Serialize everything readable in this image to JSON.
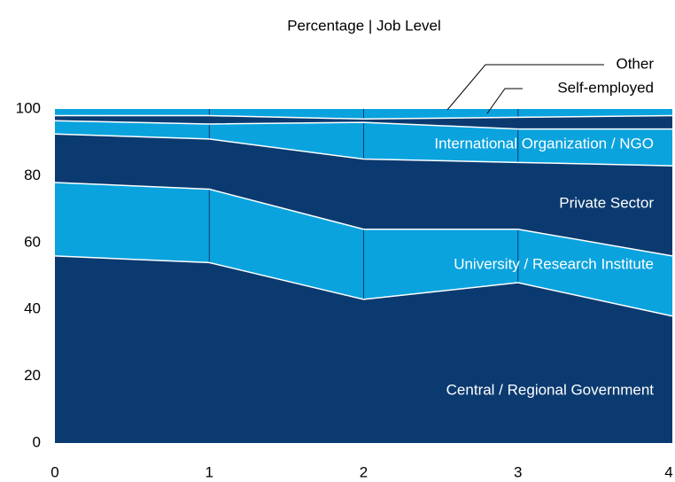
{
  "chart_data": {
    "type": "stacked_area",
    "title": "Percentage | Job Level",
    "x": [
      0,
      1,
      2,
      3,
      4
    ],
    "xlim": [
      0,
      4
    ],
    "xticks": [
      0,
      1,
      2,
      3,
      4
    ],
    "ylim": [
      0,
      100
    ],
    "yticks": [
      0,
      20,
      40,
      60,
      80,
      100
    ],
    "series": [
      {
        "name": "Central / Regional Government",
        "color": "#0b3a70",
        "values": [
          56,
          54,
          43,
          48,
          38
        ]
      },
      {
        "name": "University / Research Institute",
        "color": "#0aa3de",
        "values": [
          22,
          22,
          21,
          16,
          18
        ]
      },
      {
        "name": "Private Sector",
        "color": "#0b3a70",
        "values": [
          14.5,
          15,
          21,
          20,
          27
        ]
      },
      {
        "name": "International Organization / NGO",
        "color": "#0aa3de",
        "values": [
          4,
          4.5,
          11,
          10,
          11
        ]
      },
      {
        "name": "Self-employed",
        "color": "#0b3a70",
        "values": [
          1.5,
          2.5,
          1,
          3.5,
          4
        ]
      },
      {
        "name": "Other",
        "color": "#0aa3de",
        "values": [
          2,
          2,
          3,
          2.5,
          2
        ]
      }
    ]
  }
}
